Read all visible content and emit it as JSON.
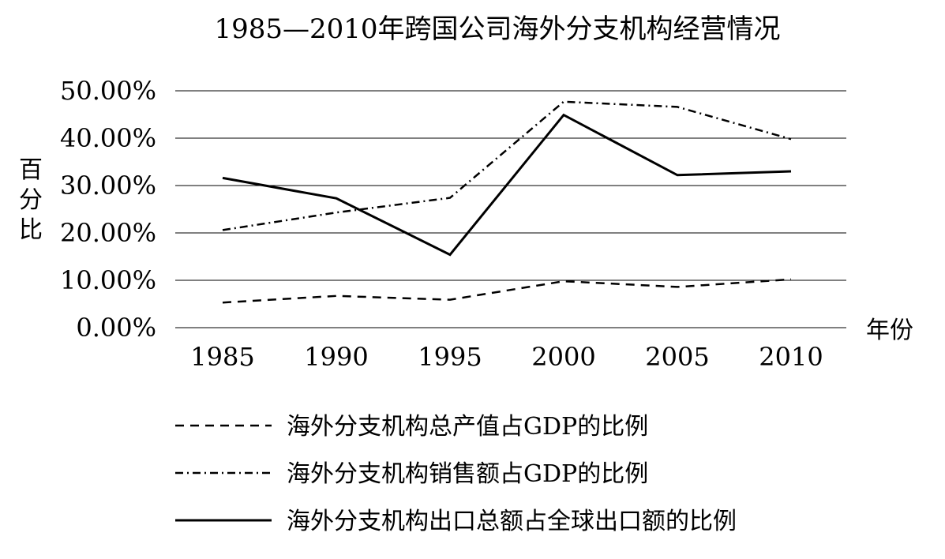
{
  "chart_data": {
    "type": "line",
    "title": "1985—2010年跨国公司海外分支机构经营情况",
    "ylabel": "百分比",
    "xlabel": "年份",
    "categories": [
      "1985",
      "1990",
      "1995",
      "2000",
      "2005",
      "2010"
    ],
    "ylim": [
      0,
      50
    ],
    "yticks": [
      0,
      10,
      20,
      30,
      40,
      50
    ],
    "ytick_labels": [
      "0.00%",
      "10.00%",
      "20.00%",
      "30.00%",
      "40.00%",
      "50.00%"
    ],
    "grid": true,
    "legend_position": "bottom",
    "series": [
      {
        "name": "海外分支机构总产值占GDP的比例",
        "style": "dashed",
        "values": [
          5.3,
          6.7,
          5.9,
          9.8,
          8.6,
          10.2
        ]
      },
      {
        "name": "海外分支机构销售额占GDP的比例",
        "style": "dashdot",
        "values": [
          20.6,
          24.3,
          27.4,
          47.7,
          46.6,
          39.8
        ]
      },
      {
        "name": "海外分支机构出口总额占全球出口额的比例",
        "style": "solid",
        "values": [
          31.6,
          27.3,
          15.4,
          44.9,
          32.2,
          33.0
        ]
      }
    ]
  }
}
